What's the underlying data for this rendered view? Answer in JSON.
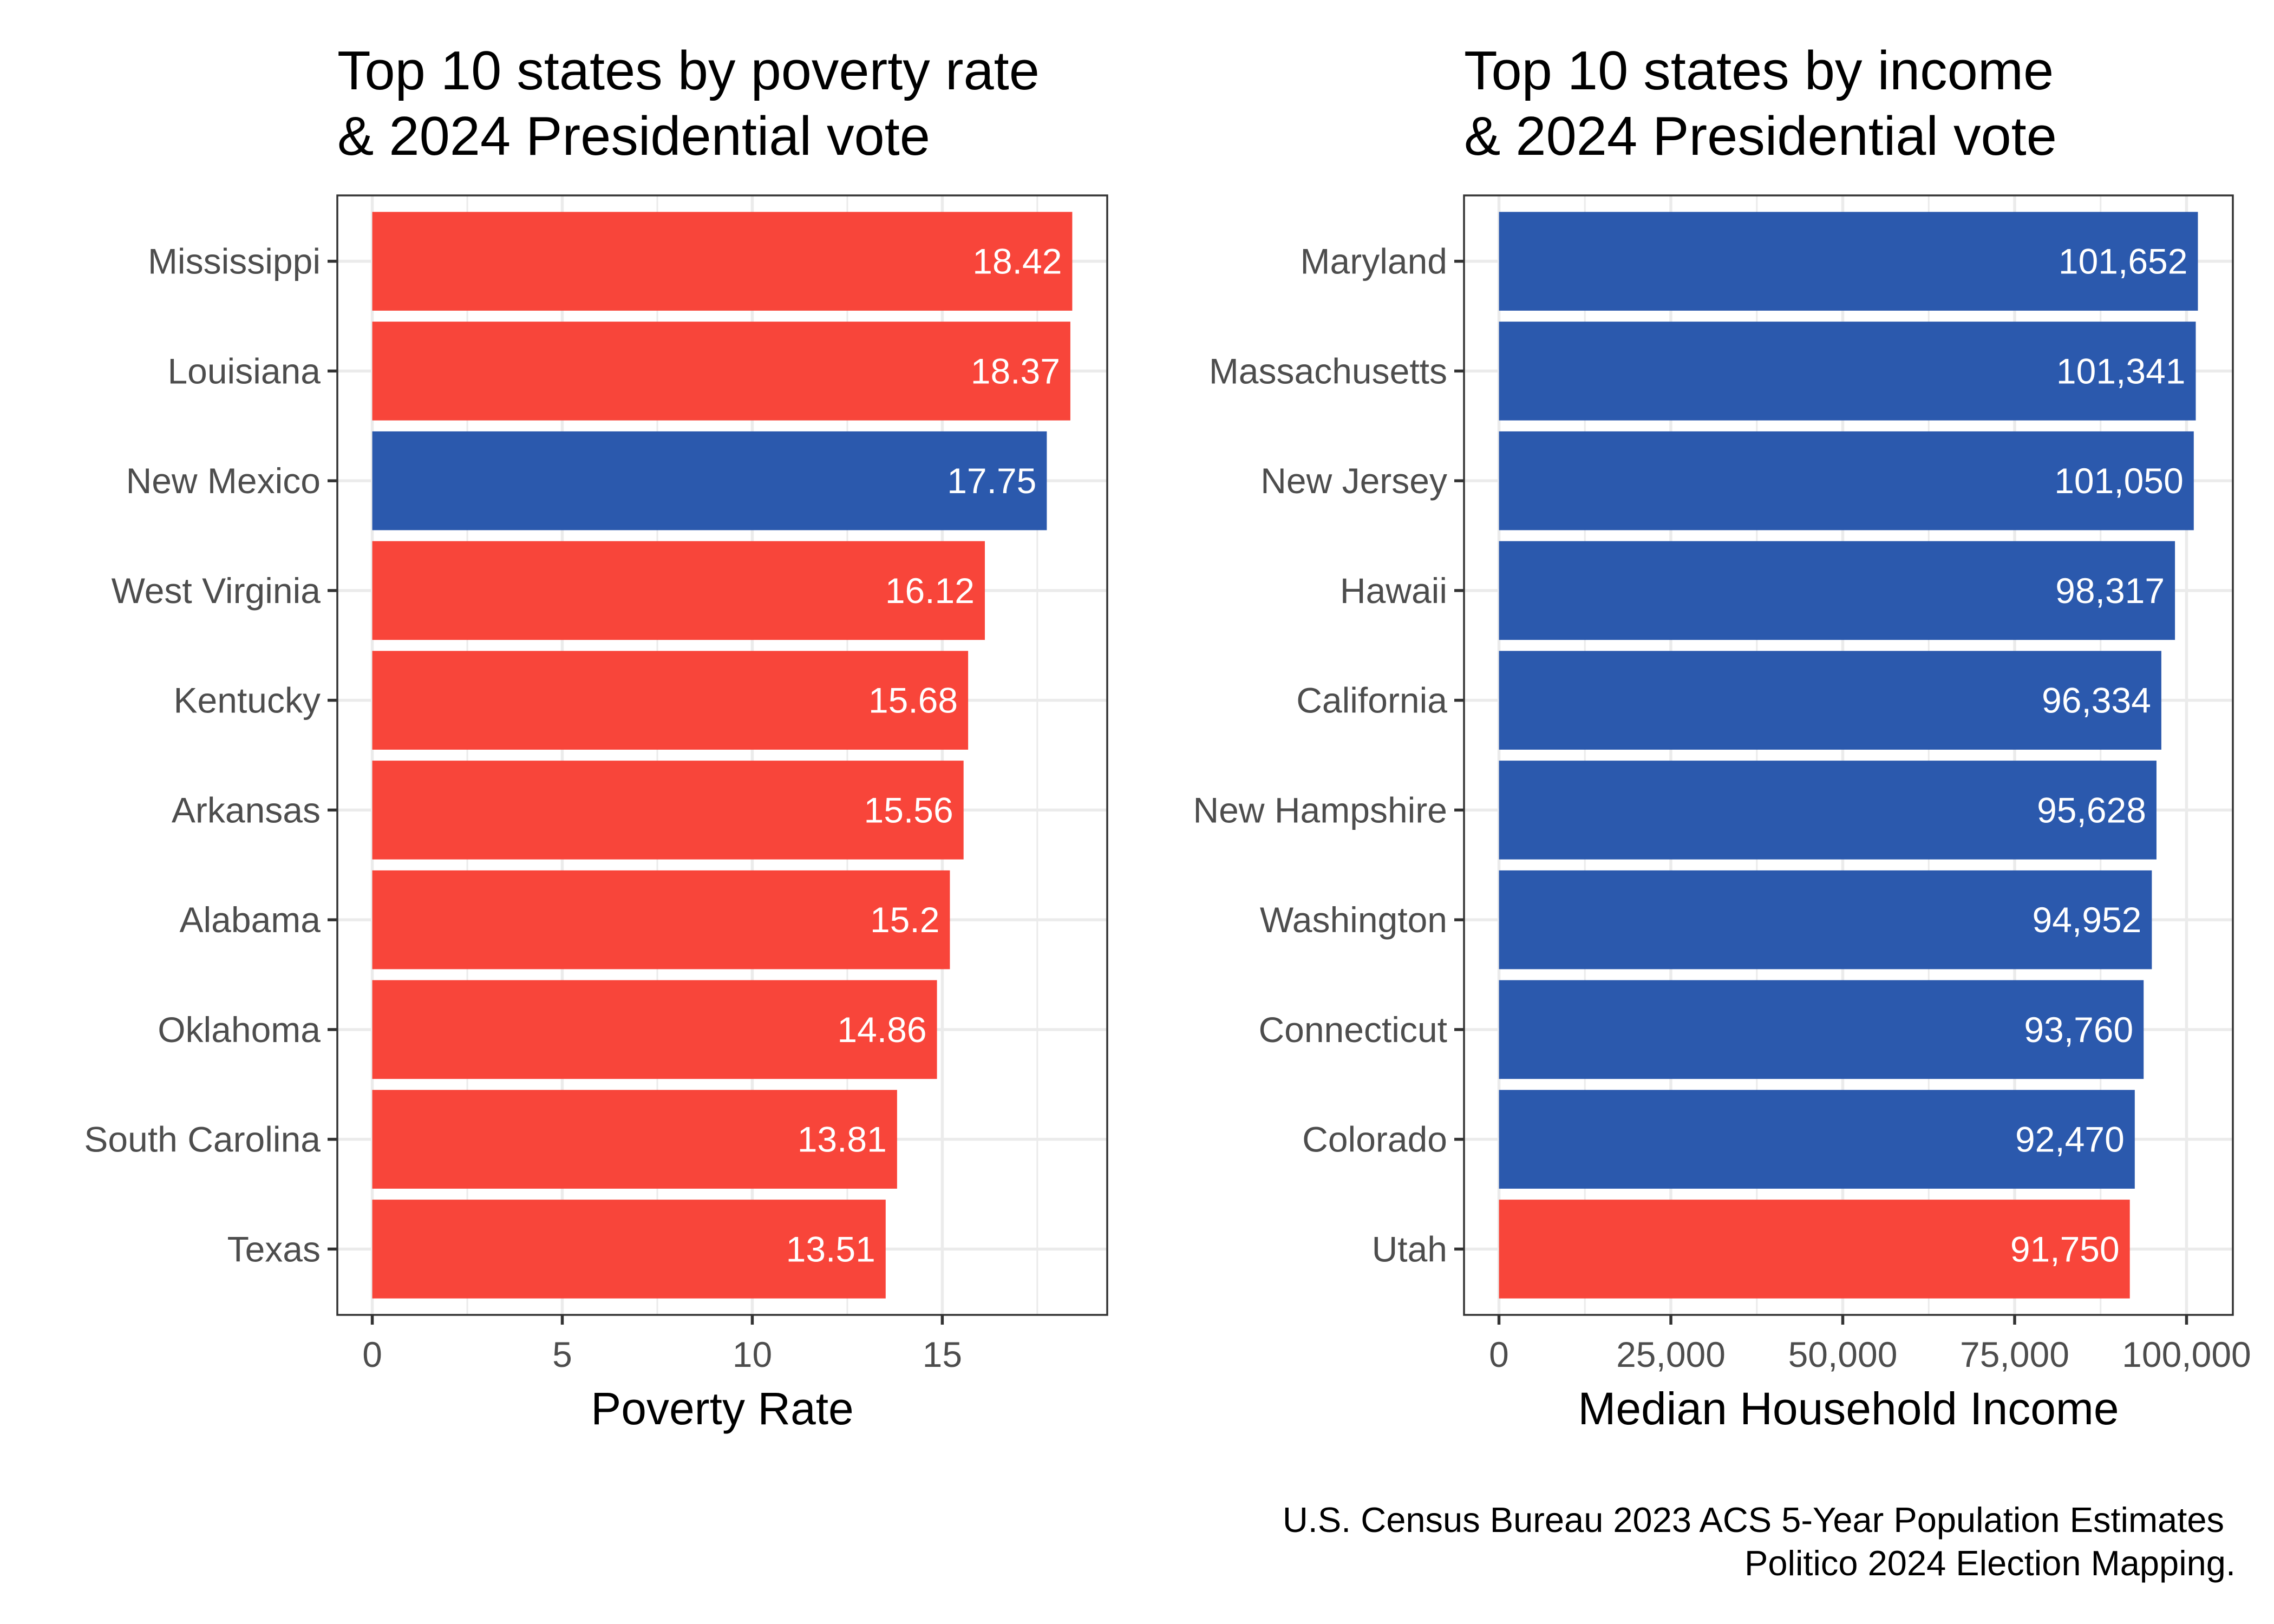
{
  "colors": {
    "republican": "#f8453a",
    "democrat": "#2b59ad",
    "grid": "#ebebeb",
    "panel_border": "#333333",
    "tick_text": "#4d4d4d"
  },
  "chart_data": [
    {
      "type": "bar",
      "orientation": "horizontal",
      "title": [
        "Top 10 states by poverty rate",
        "& 2024 Presidential vote"
      ],
      "xlabel": "Poverty Rate",
      "ylabel": "",
      "xlim": [
        -0.92,
        19.34
      ],
      "xticks": [
        0,
        5,
        10,
        15
      ],
      "xtick_labels": [
        "0",
        "5",
        "10",
        "15"
      ],
      "grid": true,
      "categories": [
        "Mississippi",
        "Louisiana",
        "New Mexico",
        "West Virginia",
        "Kentucky",
        "Arkansas",
        "Alabama",
        "Oklahoma",
        "South Carolina",
        "Texas"
      ],
      "values": [
        18.42,
        18.37,
        17.75,
        16.12,
        15.68,
        15.56,
        15.2,
        14.86,
        13.81,
        13.51
      ],
      "value_labels": [
        "18.42",
        "18.37",
        "17.75",
        "16.12",
        "15.68",
        "15.56",
        "15.2",
        "14.86",
        "13.81",
        "13.51"
      ],
      "party": [
        "R",
        "R",
        "D",
        "R",
        "R",
        "R",
        "R",
        "R",
        "R",
        "R"
      ]
    },
    {
      "type": "bar",
      "orientation": "horizontal",
      "title": [
        "Top 10 states by income",
        "& 2024 Presidential vote"
      ],
      "xlabel": "Median Household Income",
      "ylabel": "",
      "xlim": [
        -5082.6,
        106734.6
      ],
      "xticks": [
        0,
        25000,
        50000,
        75000,
        100000
      ],
      "xtick_labels": [
        "0",
        "25,000",
        "50,000",
        "75,000",
        "100,000"
      ],
      "grid": true,
      "categories": [
        "Maryland",
        "Massachusetts",
        "New Jersey",
        "Hawaii",
        "California",
        "New Hampshire",
        "Washington",
        "Connecticut",
        "Colorado",
        "Utah"
      ],
      "values": [
        101652,
        101341,
        101050,
        98317,
        96334,
        95628,
        94952,
        93760,
        92470,
        91750
      ],
      "value_labels": [
        "101,652",
        "101,341",
        "101,050",
        "98,317",
        "96,334",
        "95,628",
        "94,952",
        "93,760",
        "92,470",
        "91,750"
      ],
      "party": [
        "D",
        "D",
        "D",
        "D",
        "D",
        "D",
        "D",
        "D",
        "D",
        "R"
      ]
    }
  ],
  "caption": [
    "U.S. Census Bureau 2023 ACS 5-Year Population Estimates",
    "Politico 2024 Election Mapping."
  ]
}
